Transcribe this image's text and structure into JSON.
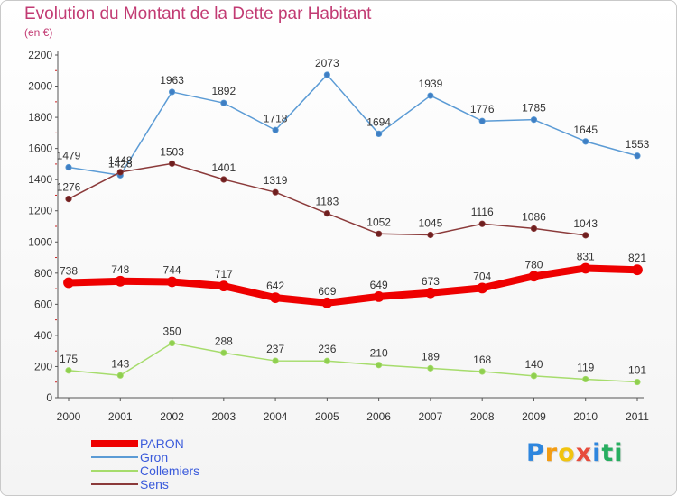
{
  "chart_data": {
    "type": "line",
    "title": "Evolution du Montant de la Dette par Habitant",
    "subtitle": "(en €)",
    "x": [
      "2000",
      "2001",
      "2002",
      "2003",
      "2004",
      "2005",
      "2006",
      "2007",
      "2008",
      "2009",
      "2010",
      "2011"
    ],
    "ylim": [
      0,
      2200
    ],
    "yticks": [
      0,
      200,
      400,
      600,
      800,
      1000,
      1200,
      1400,
      1600,
      1800,
      2000,
      2200
    ],
    "grid": false,
    "legend_position": "bottom-left",
    "series": [
      {
        "name": "Gron",
        "color": "#5b9bd5",
        "marker": "#3f7fc4",
        "values": [
          1479,
          1428,
          1963,
          1892,
          1718,
          2073,
          1694,
          1939,
          1776,
          1785,
          1645,
          1553
        ]
      },
      {
        "name": "Sens",
        "color": "#8b3a3a",
        "marker": "#6e1f1f",
        "values": [
          1276,
          1448,
          1503,
          1401,
          1319,
          1183,
          1052,
          1045,
          1116,
          1086,
          1043,
          null
        ]
      },
      {
        "name": "PARON",
        "color": "#ee0000",
        "marker": "#ee0000",
        "values": [
          738,
          748,
          744,
          717,
          642,
          609,
          649,
          673,
          704,
          780,
          831,
          821
        ]
      },
      {
        "name": "Collemiers",
        "color": "#a6dc6c",
        "marker": "#8fcf4f",
        "values": [
          175,
          143,
          350,
          288,
          237,
          236,
          210,
          189,
          168,
          140,
          119,
          101
        ]
      }
    ]
  },
  "legend": {
    "items": [
      {
        "label": "PARON",
        "color": "#ee0000",
        "thickness": 8
      },
      {
        "label": "Gron",
        "color": "#5b9bd5",
        "thickness": 2
      },
      {
        "label": "Collemiers",
        "color": "#a6dc6c",
        "thickness": 2
      },
      {
        "label": "Sens",
        "color": "#8b3a3a",
        "thickness": 2
      }
    ]
  },
  "logo": {
    "letters": [
      "P",
      "r",
      "o",
      "x",
      "i",
      "t",
      "i"
    ],
    "colors": [
      "#2e86de",
      "#f39c12",
      "#f1c40f",
      "#e74c3c",
      "#2e86de",
      "#27ae60",
      "#27ae60"
    ]
  }
}
